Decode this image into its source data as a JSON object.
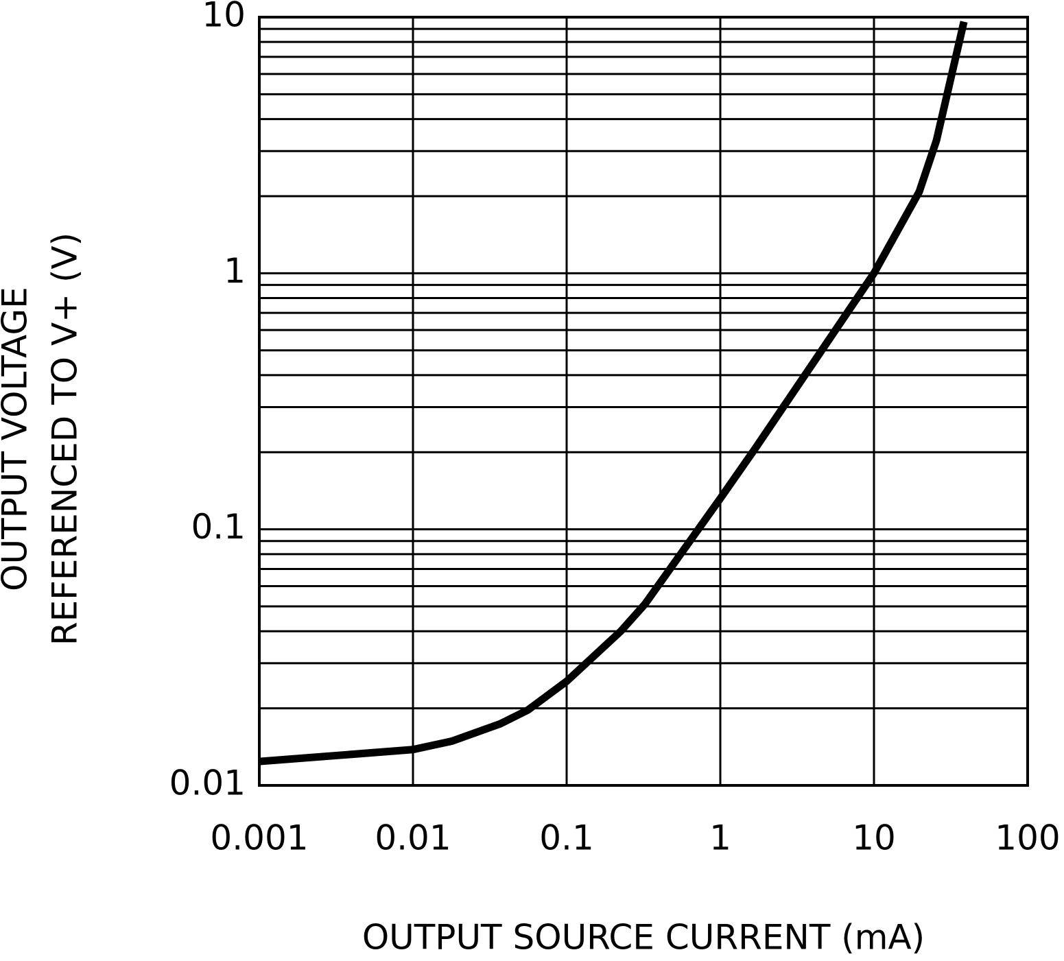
{
  "chart_data": {
    "type": "line",
    "xlabel": "OUTPUT SOURCE CURRENT (mA)",
    "ylabel": [
      "OUTPUT VOLTAGE",
      "REFERENCED TO V+ (V)"
    ],
    "x_log": true,
    "y_log": true,
    "grid": true,
    "xlim": [
      0.001,
      100
    ],
    "ylim": [
      0.01,
      10
    ],
    "xticks": [
      0.001,
      0.01,
      0.1,
      1,
      10,
      100
    ],
    "yticks": [
      0.01,
      0.1,
      1,
      10
    ],
    "y_minor_ticks": [
      0.02,
      0.03,
      0.04,
      0.05,
      0.06,
      0.07,
      0.08,
      0.09,
      0.2,
      0.3,
      0.4,
      0.5,
      0.6,
      0.7,
      0.8,
      0.9,
      2,
      3,
      4,
      5,
      6,
      7,
      8,
      9
    ],
    "series": [
      {
        "color": "#000000",
        "x": [
          0.001,
          0.01,
          0.018,
          0.037,
          0.056,
          0.1,
          0.225,
          0.323,
          1,
          1.67,
          10,
          19.7,
          25.5,
          38.5
        ],
        "values": [
          0.0124,
          0.0138,
          0.0149,
          0.0174,
          0.0197,
          0.0255,
          0.04,
          0.051,
          0.132,
          0.205,
          1,
          2.08,
          3.3,
          9.6
        ]
      }
    ]
  }
}
